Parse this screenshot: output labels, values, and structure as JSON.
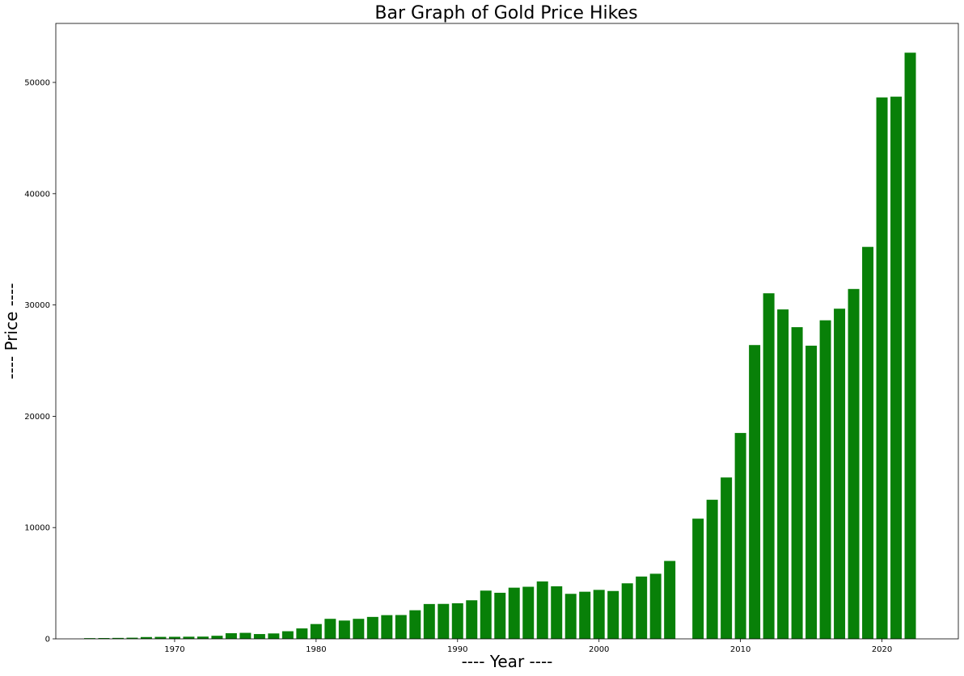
{
  "chart_data": {
    "type": "bar",
    "title": "Bar Graph of Gold Price Hikes",
    "xlabel": "---- Year ----",
    "ylabel": "---- Price ----",
    "bar_color": "#088008",
    "x": [
      1964,
      1965,
      1966,
      1967,
      1968,
      1969,
      1970,
      1971,
      1972,
      1973,
      1974,
      1975,
      1976,
      1977,
      1978,
      1979,
      1980,
      1981,
      1982,
      1983,
      1984,
      1985,
      1986,
      1987,
      1988,
      1989,
      1990,
      1991,
      1992,
      1993,
      1994,
      1995,
      1996,
      1997,
      1998,
      1999,
      2000,
      2001,
      2002,
      2003,
      2004,
      2005,
      2007,
      2008,
      2009,
      2010,
      2011,
      2012,
      2013,
      2014,
      2015,
      2016,
      2017,
      2018,
      2019,
      2020,
      2021,
      2022
    ],
    "values": [
      63,
      72,
      84,
      103,
      162,
      176,
      184,
      193,
      202,
      278,
      506,
      540,
      432,
      486,
      685,
      937,
      1330,
      1800,
      1645,
      1800,
      1970,
      2130,
      2140,
      2570,
      3130,
      3140,
      3200,
      3466,
      4334,
      4140,
      4598,
      4680,
      5160,
      4725,
      4045,
      4234,
      4400,
      4300,
      4990,
      5600,
      5850,
      7000,
      10800,
      12500,
      14500,
      18500,
      26400,
      31050,
      29600,
      28006,
      26343,
      28623,
      29667,
      31438,
      35220,
      48651,
      48720,
      52670
    ],
    "xlim": [
      1961.6,
      2025.4
    ],
    "ylim": [
      0,
      55300
    ],
    "x_ticks": [
      1970,
      1980,
      1990,
      2000,
      2010,
      2020
    ],
    "x_tick_labels": [
      "1970",
      "1980",
      "1990",
      "2000",
      "2010",
      "2020"
    ],
    "y_ticks": [
      0,
      10000,
      20000,
      30000,
      40000,
      50000
    ],
    "y_tick_labels": [
      "0",
      "10000",
      "20000",
      "30000",
      "40000",
      "50000"
    ],
    "grid": false,
    "legend": "none"
  }
}
